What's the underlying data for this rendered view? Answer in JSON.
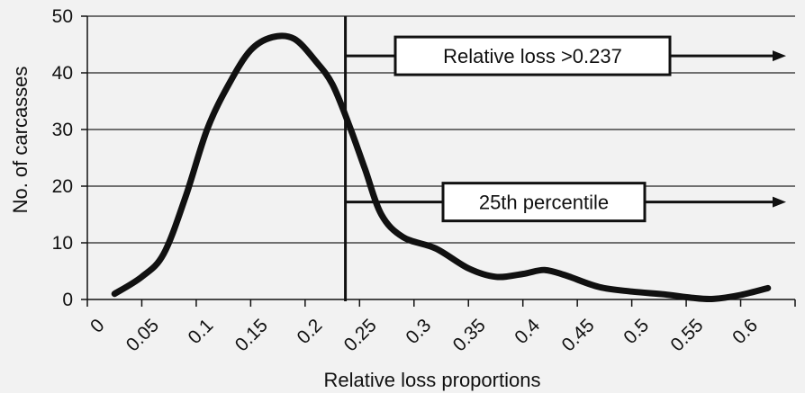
{
  "chart_data": {
    "type": "line",
    "xlabel": "Relative loss proportions",
    "ylabel": "No. of carcasses",
    "xlim": [
      0,
      0.65
    ],
    "ylim": [
      0,
      50
    ],
    "x_ticks": [
      "0",
      "0.05",
      "0.1",
      "0.15",
      "0.2",
      "0.25",
      "0.3",
      "0.35",
      "0.4",
      "0.45",
      "0.5",
      "0.55",
      "0.6"
    ],
    "y_ticks": [
      "0",
      "10",
      "20",
      "30",
      "40",
      "50"
    ],
    "grid": "horizontal",
    "series": [
      {
        "x": [
          0.025,
          0.05,
          0.07,
          0.09,
          0.11,
          0.13,
          0.15,
          0.17,
          0.19,
          0.21,
          0.225,
          0.24,
          0.255,
          0.27,
          0.29,
          0.32,
          0.35,
          0.375,
          0.4,
          0.42,
          0.44,
          0.47,
          0.5,
          0.53,
          0.555,
          0.575,
          0.6,
          0.625
        ],
        "y": [
          1,
          4,
          8,
          18,
          30,
          38,
          44,
          46.3,
          46,
          42,
          38,
          31,
          23,
          15,
          11,
          9,
          5.5,
          4,
          4.5,
          5.2,
          4.2,
          2.2,
          1.4,
          0.9,
          0.3,
          0.1,
          0.8,
          2
        ]
      }
    ],
    "annotations": {
      "vline_x": 0.237,
      "relative_loss_label": "Relative loss >0.237",
      "relative_loss_y": 43,
      "percentile_label": "25th percentile",
      "percentile_y": 17.2
    }
  }
}
